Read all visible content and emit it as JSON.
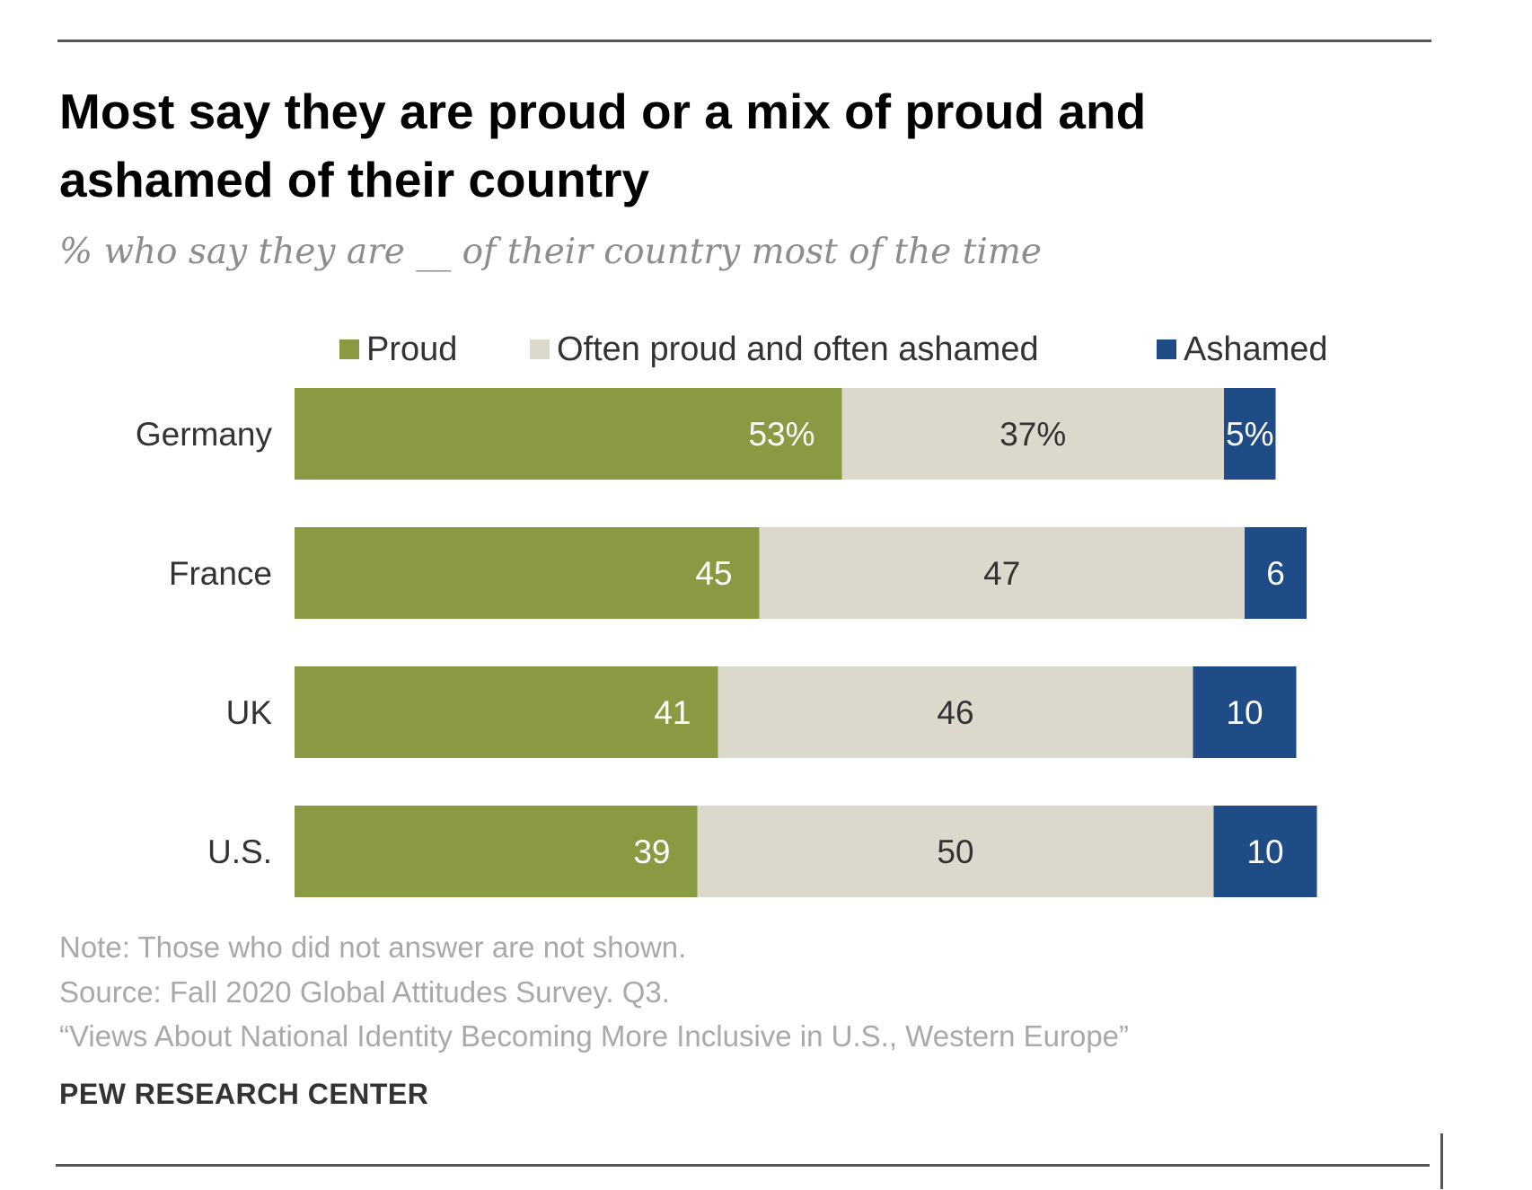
{
  "title": "Most say they are proud or a mix of proud and ashamed of their country",
  "subtitle": "% who say they are __ of their country most of the time",
  "colors": {
    "proud": "#8a9a43",
    "mixed": "#dcd8cb",
    "ashamed": "#1f4b86"
  },
  "legend": [
    {
      "key": "proud",
      "label": "Proud"
    },
    {
      "key": "mixed",
      "label": "Often proud and often ashamed"
    },
    {
      "key": "ashamed",
      "label": "Ashamed"
    }
  ],
  "chart_data": {
    "type": "bar",
    "orientation": "horizontal",
    "stacked": true,
    "categories": [
      "Germany",
      "France",
      "UK",
      "U.S."
    ],
    "series": [
      {
        "name": "Proud",
        "values": [
          53,
          45,
          41,
          39
        ],
        "labels": [
          "53%",
          "45",
          "41",
          "39"
        ]
      },
      {
        "name": "Often proud and often ashamed",
        "values": [
          37,
          47,
          46,
          50
        ],
        "labels": [
          "37%",
          "47",
          "46",
          "50"
        ]
      },
      {
        "name": "Ashamed",
        "values": [
          5,
          6,
          10,
          10
        ],
        "labels": [
          "5%",
          "6",
          "10",
          "10"
        ]
      }
    ],
    "legend_position": "top",
    "grid": false
  },
  "footnotes": {
    "note": "Note: Those who did not answer are not shown.",
    "source": "Source: Fall 2020 Global Attitudes Survey. Q3.",
    "report": "“Views About National Identity Becoming More Inclusive in U.S., Western Europe”"
  },
  "credit": "PEW RESEARCH CENTER"
}
